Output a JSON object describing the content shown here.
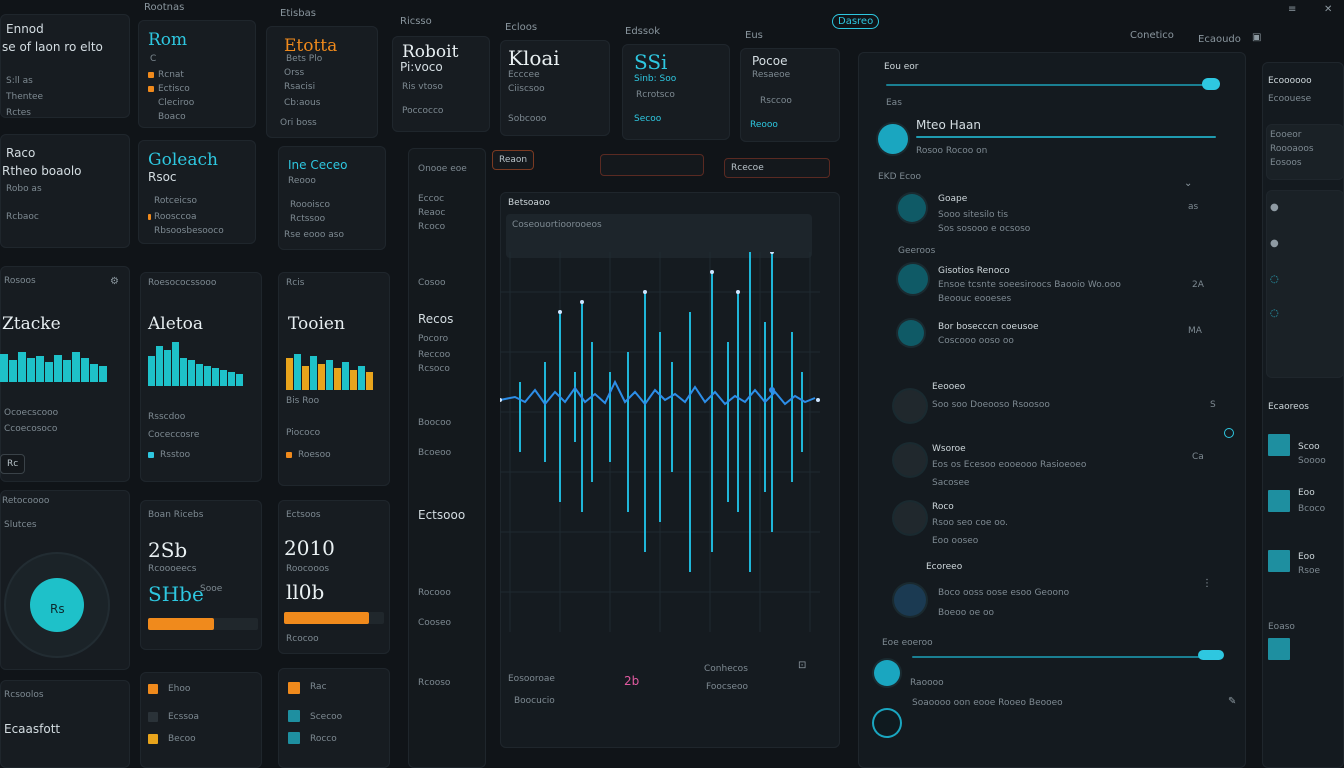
{
  "topbar": {
    "items": [
      "Rootnas",
      "Etisbas",
      "Ricsso",
      "Ecloos",
      "Edssok",
      "Eus"
    ],
    "pill": "Dasreo",
    "right": [
      "Conetico",
      "Ecaoudo"
    ]
  },
  "cards_row1": [
    {
      "title": "Ennod",
      "sub": "se of laon ro elto",
      "l1": "S:ll as",
      "l2": "Thentee",
      "l3": "Rctes"
    },
    {
      "title": "Rom",
      "sub": "C",
      "l1": "Rcnat",
      "l2": "Ectisco",
      "l3": "Cleciroo",
      "l4": "Boaco"
    },
    {
      "title": "Etotta",
      "sub": "Bets Plo",
      "l1": "Orss",
      "l2": "Rsacisi",
      "l3": "Cb:aous",
      "l4": "Ori boss"
    },
    {
      "title": "Roboit",
      "sub": "Pi:voco",
      "l1": "Ris vtoso",
      "l2": "Poccocco"
    },
    {
      "title": "Kloai",
      "sub": "Ecccee",
      "l1": "Ciiscsoo",
      "l2": "Sobcooo"
    },
    {
      "title": "SSi",
      "sub": "Sinb: Soo",
      "l1": "Rcrotsco",
      "l2": "Secoo"
    },
    {
      "title": "Pocoe",
      "sub": "Resaeoe",
      "l1": "Rsccoo",
      "l2": "Reooo"
    }
  ],
  "cards_row2": [
    {
      "title": "Raco",
      "sub": "Rtheo boaolo",
      "l1": "Robo as",
      "l2": "Rcbaoc"
    },
    {
      "title": "Goleach",
      "sub": "Rsoc",
      "l1": "Rotceicso",
      "l2": "Roosccoa",
      "l3": "Rbsoosbesooco"
    },
    {
      "title": "Ine Ceceo",
      "sub": "Reooo",
      "l1": "Roooisco",
      "l2": "Rctssoo",
      "l3": "Rse eooo aso"
    }
  ],
  "charts_row": [
    {
      "header": "Rosoos",
      "title": "Ztacke",
      "l1": "Ocoecscooo",
      "l2": "Ccoecosoco",
      "btn": "Rc"
    },
    {
      "header": "Roesococssooo",
      "title": "Aletoa",
      "l1": "Rsscdoo",
      "l2": "Coceccosre",
      "l3": "Rsstoo"
    },
    {
      "header": "Rcis",
      "title": "Tooien",
      "l1": "Bis Roo",
      "l2": "Piococo",
      "l3": "Roesoo"
    }
  ],
  "stats_row": [
    {
      "header": "Retocoooo",
      "sub": "Slutces",
      "center": "Rs"
    },
    {
      "header": "Boan Ricebs",
      "value": "2Sb",
      "sub": "Rcoooeecs",
      "bigline": "SHbe",
      "bar_label": "Sooe",
      "bar_level": 0.6
    },
    {
      "header": "Ectsoos",
      "value": "2010",
      "sub": "Roocooos",
      "bigline": "ll0b",
      "bar_label": "Rcocoo",
      "bar_level": 0.85
    }
  ],
  "bottom_row": [
    {
      "title": "Ecaasfott",
      "sub": "Rcsoolos"
    },
    {
      "l1": "Ehoo",
      "l2": "Ecssoa",
      "l3": "Becoo"
    },
    {
      "l1": "Rac",
      "l2": "Scecoo",
      "l3": "Rocco"
    }
  ],
  "middle_nav": {
    "header": "Onooe eoe",
    "items": [
      "Eccoc",
      "Reaoc",
      "Rcoco",
      "Cosoo",
      "Recos",
      "Pocoro",
      "Reccoo",
      "Rcsoco",
      "Boocoo",
      "Bcoeoo",
      "Ectsooo",
      "Rocooo",
      "Cooseo",
      "Rcooso"
    ]
  },
  "main_chart_panel": {
    "tabs": [
      "Reaon",
      "",
      "Rcecoe"
    ],
    "chart_title": "Betsoaoo",
    "chart_sub": "Coseouortioorooeos",
    "legend": [
      "Boocucio",
      "Foocseoo"
    ],
    "footer_left": "Eosooroae",
    "footer_num": "2b",
    "footer_right": "Conhecos"
  },
  "chat_panel": {
    "header": "Eou eor",
    "search_value": "Eas",
    "title": "Mteo Haan",
    "meta": "Rosoo Rocoo on",
    "section": "EKD Ecoo",
    "messages": [
      {
        "name": "Goape",
        "text": "Sooo sitesilo tis",
        "meta": "Sos sosooo e ocsoso",
        "time": "as",
        "unread": false
      },
      {
        "name": "Geeroos",
        "text": "",
        "meta": "",
        "time": "",
        "unread": false
      },
      {
        "name": "Gisotios Renoco",
        "text": "Ensoe tcsnte soeesiroocs Baooio Wo.ooo",
        "meta": "Beoouc eooeses",
        "time": "2A",
        "unread": false
      },
      {
        "name": "Bor bosecccn coeusoe",
        "text": "Coscooo ooso oo",
        "meta": "",
        "time": "MA",
        "unread": false
      },
      {
        "name": "Eeooeo",
        "text": "Soo soo Doeooso Rsoosoo",
        "meta": "",
        "time": "S",
        "unread": true
      },
      {
        "name": "Wsoroe",
        "text": "Eos os Ecesoo eooeooo Rasioeoeo",
        "meta": "Sacosee",
        "time": "Ca",
        "unread": false
      },
      {
        "name": "Roco",
        "text": "Rsoo seo coe oo.",
        "meta": "Eoo ooseo",
        "time": "",
        "unread": false
      },
      {
        "name": "Ecoreeo",
        "text": "Boco ooss oose esoo Geoono",
        "meta": "Boeoo oe oo",
        "time": "",
        "unread": false
      }
    ],
    "composer_label": "Eoe eoeroo",
    "composer_hint": "Raoooo",
    "footer_text": "Soaoooo oon eooe Rooeo Beooeo"
  },
  "right_panel": {
    "header": "Ecoooooo",
    "sub": "Ecoouese",
    "card_title": "Eooeor",
    "card_l1": "Roooaoos",
    "card_l2": "Eosoos",
    "list_header": "Ecaoreos",
    "items": [
      {
        "label": "Scoo",
        "text": "Soooo"
      },
      {
        "label": "Eoo",
        "text": "Bcoco"
      },
      {
        "label": "Eoo",
        "text": "Rsoe"
      }
    ],
    "foot": "Eoaso"
  },
  "colors": {
    "accent": "#2ec7e0",
    "orange": "#f08a1c",
    "teal": "#1ec1c9"
  }
}
